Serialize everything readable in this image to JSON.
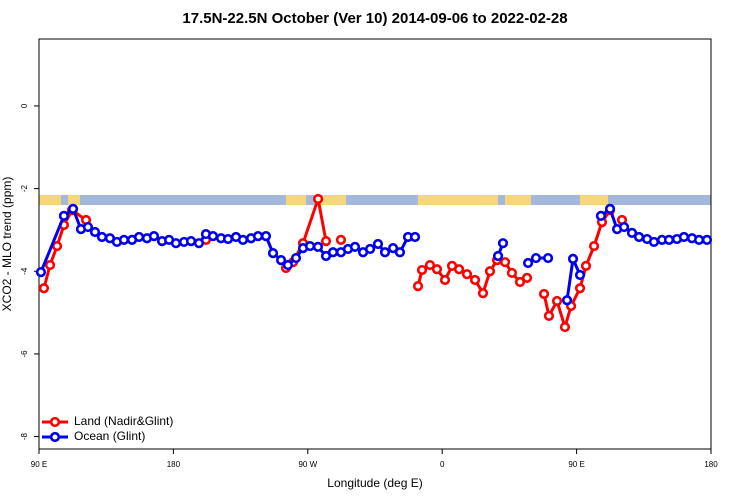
{
  "chart_data": {
    "type": "line",
    "title": "17.5N-22.5N October (Ver 10)   2014-09-06 to 2022-02-28",
    "x_label": "Longitude (deg E)",
    "y_label": "XCO2 - MLO trend (ppm)",
    "xlim": [
      90,
      540
    ],
    "xticks": [
      {
        "value": 90,
        "label": "90 E"
      },
      {
        "value": 180,
        "label": "180"
      },
      {
        "value": 270,
        "label": "90 W"
      },
      {
        "value": 360,
        "label": "0"
      },
      {
        "value": 450,
        "label": "90 E"
      },
      {
        "value": 540,
        "label": "180"
      }
    ],
    "ylim": [
      -8.3,
      1.62
    ],
    "yticks": [
      0,
      -2,
      -4,
      -6,
      -8
    ],
    "legend": "bottom-left",
    "series": [
      {
        "name": "Land (Nadir&Glint)",
        "color": "#ff0000",
        "x": [
          93.3,
          97.4,
          102.1,
          106.7,
          112.1,
          121.5,
          null,
          201.8,
          null,
          255.4,
          260.1,
          266.8,
          276.9,
          282.2,
          null,
          292.2,
          null,
          343.8,
          346.5,
          351.8,
          356.5,
          361.9,
          366.6,
          371.3,
          376.6,
          382.0,
          387.3,
          392.0,
          396.7,
          402.1,
          406.7,
          412.1,
          416.8,
          null,
          428.2,
          431.5,
          436.9,
          442.2,
          446.3,
          452.3,
          456.3,
          461.7,
          467.0,
          472.4,
          null,
          480.4
        ],
        "values": [
          -4.41,
          -3.85,
          -3.39,
          -2.88,
          -2.52,
          -2.76,
          null,
          -3.24,
          null,
          -3.92,
          -3.78,
          -3.32,
          -2.25,
          -3.27,
          null,
          -3.24,
          null,
          -4.36,
          -3.97,
          -3.85,
          -3.95,
          -4.21,
          -3.87,
          -3.95,
          -4.07,
          -4.21,
          -4.53,
          -4.0,
          -3.73,
          -3.78,
          -4.04,
          -4.26,
          -4.16,
          null,
          -4.55,
          -5.08,
          -4.72,
          -5.35,
          -4.84,
          -4.41,
          -3.87,
          -3.39,
          -2.81,
          -2.52,
          null,
          -2.76
        ]
      },
      {
        "name": "Ocean (Glint)",
        "color": "#0000ee",
        "x": [
          91.3,
          106.7,
          112.8,
          118.1,
          122.8,
          127.5,
          132.2,
          137.5,
          142.2,
          146.9,
          152.3,
          157.0,
          162.3,
          167.0,
          172.4,
          177.1,
          181.7,
          187.1,
          191.8,
          197.1,
          201.8,
          206.5,
          211.9,
          216.6,
          221.9,
          226.6,
          232.0,
          236.7,
          242.0,
          246.7,
          252.1,
          256.7,
          262.1,
          266.8,
          271.5,
          276.8,
          282.2,
          286.9,
          292.2,
          296.9,
          301.6,
          307.0,
          311.7,
          317.0,
          321.7,
          327.1,
          331.7,
          337.1,
          341.8,
          null,
          397.4,
          400.7,
          null,
          417.5,
          422.8,
          430.9,
          null,
          443.6,
          447.6,
          452.3,
          null,
          466.3,
          472.4,
          477.1,
          481.8,
          487.1,
          491.8,
          497.2,
          501.8,
          507.2,
          511.9,
          517.2,
          521.9,
          527.3,
          532.0,
          537.3
        ],
        "values": [
          -4.02,
          -2.66,
          -2.49,
          -2.98,
          -2.93,
          -3.05,
          -3.17,
          -3.2,
          -3.29,
          -3.24,
          -3.24,
          -3.17,
          -3.2,
          -3.15,
          -3.27,
          -3.24,
          -3.32,
          -3.29,
          -3.27,
          -3.32,
          -3.1,
          -3.15,
          -3.2,
          -3.22,
          -3.17,
          -3.24,
          -3.2,
          -3.15,
          -3.15,
          -3.56,
          -3.73,
          -3.85,
          -3.68,
          -3.44,
          -3.39,
          -3.41,
          -3.63,
          -3.54,
          -3.54,
          -3.46,
          -3.41,
          -3.54,
          -3.46,
          -3.34,
          -3.54,
          -3.44,
          -3.54,
          -3.17,
          -3.17,
          null,
          -3.63,
          -3.32,
          null,
          -3.8,
          -3.68,
          -3.68,
          null,
          -4.7,
          -3.7,
          -4.09,
          null,
          -2.66,
          -2.49,
          -2.98,
          -2.93,
          -3.07,
          -3.17,
          -3.22,
          -3.29,
          -3.24,
          -3.24,
          -3.22,
          -3.17,
          -3.2,
          -3.24,
          -3.24
        ]
      }
    ]
  }
}
